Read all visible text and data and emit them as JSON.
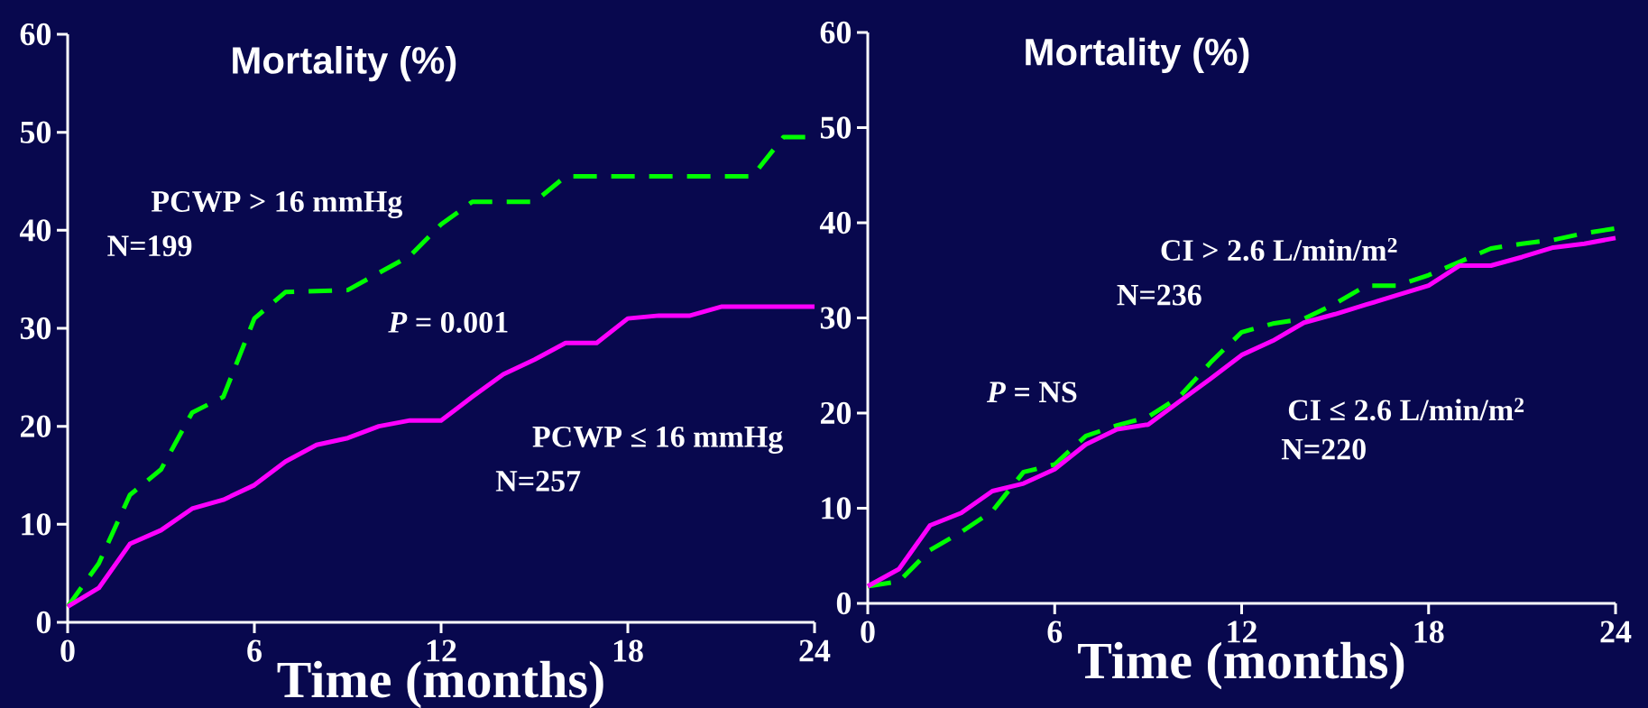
{
  "chart_data": [
    {
      "type": "line",
      "ylabel": "Mortality (%)",
      "xlabel": "Time (months)",
      "xlim": [
        0,
        24
      ],
      "xticks": [
        0,
        6,
        12,
        18,
        24
      ],
      "ylim": [
        0,
        60
      ],
      "yticks": [
        0,
        10,
        20,
        30,
        40,
        50,
        60
      ],
      "x": [
        0,
        1,
        2,
        3,
        4,
        5,
        6,
        7,
        8,
        9,
        10,
        11,
        12,
        13,
        14,
        15,
        16,
        17,
        18,
        19,
        20,
        21,
        22,
        23,
        24
      ],
      "series": [
        {
          "color": "#00ff00",
          "line_style": "dashed",
          "x": [
            0,
            1,
            2,
            3,
            4,
            5,
            6,
            7,
            9,
            11,
            12,
            13,
            15,
            16,
            22,
            23,
            24
          ],
          "values": [
            1.6,
            6.0,
            13.0,
            15.6,
            21.4,
            23.0,
            31.0,
            33.7,
            33.9,
            37.4,
            40.6,
            42.9,
            42.9,
            45.5,
            45.5,
            49.5,
            49.5
          ]
        },
        {
          "color": "#ff00ff",
          "line_style": "solid",
          "values": [
            1.6,
            3.5,
            8.0,
            9.4,
            11.6,
            12.5,
            14.0,
            16.4,
            18.1,
            18.8,
            20.0,
            20.6,
            20.6,
            23.0,
            25.3,
            26.8,
            28.5,
            28.5,
            31.0,
            31.3,
            31.3,
            32.2,
            32.2,
            32.2,
            32.2
          ]
        }
      ],
      "annotations": [
        "PCWP > 16 mmHg",
        "N=199",
        "*P* = 0.001",
        "PCWP ≤ 16 mmHg",
        "N=257"
      ]
    },
    {
      "type": "line",
      "ylabel": "Mortality (%)",
      "xlabel": "Time (months)",
      "xlim": [
        0,
        24
      ],
      "xticks": [
        0,
        6,
        12,
        18,
        24
      ],
      "ylim": [
        0,
        60
      ],
      "yticks": [
        0,
        10,
        20,
        30,
        40,
        50,
        60
      ],
      "x": [
        0,
        1,
        2,
        3,
        4,
        5,
        6,
        7,
        8,
        9,
        10,
        11,
        12,
        13,
        14,
        15,
        16,
        17,
        18,
        19,
        20,
        21,
        22,
        23,
        24
      ],
      "series": [
        {
          "color": "#00ff00",
          "line_style": "dashed",
          "values": [
            1.8,
            2.3,
            5.6,
            7.5,
            9.7,
            13.8,
            14.6,
            17.6,
            18.7,
            19.6,
            21.7,
            25.3,
            28.5,
            29.4,
            29.9,
            31.5,
            33.4,
            33.4,
            34.5,
            35.9,
            37.3,
            37.8,
            38.2,
            38.9,
            39.4
          ]
        },
        {
          "color": "#ff00ff",
          "line_style": "solid",
          "values": [
            1.8,
            3.6,
            8.2,
            9.5,
            11.8,
            12.6,
            14.1,
            16.7,
            18.3,
            18.8,
            21.2,
            23.6,
            26.1,
            27.6,
            29.5,
            30.4,
            31.4,
            32.4,
            33.4,
            35.5,
            35.5,
            36.4,
            37.4,
            37.8,
            38.4
          ]
        }
      ],
      "annotations": [
        "CI > 2.6 L/min/m$^{2}$",
        "N=236",
        "*P* = NS",
        "CI ≤ 2.6 L/min/m$^{2}$",
        "N=220"
      ]
    }
  ]
}
